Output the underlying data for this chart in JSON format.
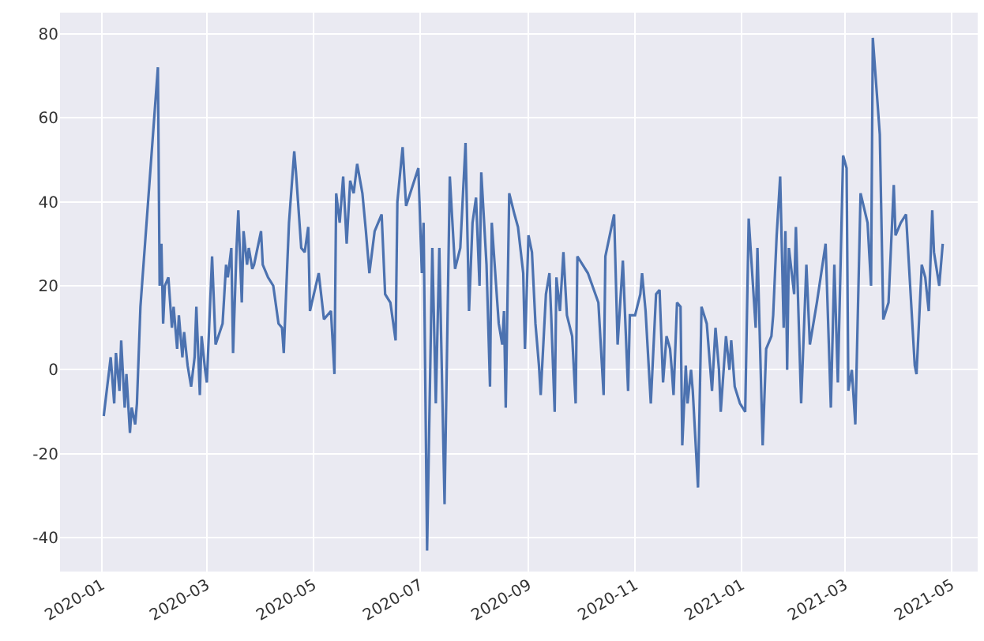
{
  "chart_data": {
    "type": "line",
    "xlim": [
      "2019-12-08",
      "2021-05-16"
    ],
    "ylim": [
      -48,
      85
    ],
    "xticks": [
      "2020-01",
      "2020-03",
      "2020-05",
      "2020-07",
      "2020-09",
      "2020-11",
      "2021-01",
      "2021-03",
      "2021-05"
    ],
    "yticks": [
      -40,
      -20,
      0,
      20,
      40,
      60,
      80
    ],
    "grid": true,
    "marker": "none",
    "line_style": "solid",
    "x": [
      "2020-01-02",
      "2020-01-06",
      "2020-01-08",
      "2020-01-09",
      "2020-01-11",
      "2020-01-12",
      "2020-01-14",
      "2020-01-15",
      "2020-01-17",
      "2020-01-18",
      "2020-01-20",
      "2020-01-21",
      "2020-01-23",
      "2020-02-02",
      "2020-02-03",
      "2020-02-04",
      "2020-02-05",
      "2020-02-06",
      "2020-02-08",
      "2020-02-10",
      "2020-02-11",
      "2020-02-13",
      "2020-02-14",
      "2020-02-16",
      "2020-02-17",
      "2020-02-19",
      "2020-02-21",
      "2020-02-23",
      "2020-02-24",
      "2020-02-26",
      "2020-02-27",
      "2020-02-29",
      "2020-03-01",
      "2020-03-04",
      "2020-03-06",
      "2020-03-10",
      "2020-03-12",
      "2020-03-13",
      "2020-03-15",
      "2020-03-16",
      "2020-03-18",
      "2020-03-19",
      "2020-03-21",
      "2020-03-22",
      "2020-03-24",
      "2020-03-25",
      "2020-03-27",
      "2020-03-28",
      "2020-04-01",
      "2020-04-02",
      "2020-04-05",
      "2020-04-08",
      "2020-04-11",
      "2020-04-13",
      "2020-04-14",
      "2020-04-16",
      "2020-04-17",
      "2020-04-20",
      "2020-04-21",
      "2020-04-24",
      "2020-04-26",
      "2020-04-28",
      "2020-04-29",
      "2020-05-04",
      "2020-05-07",
      "2020-05-11",
      "2020-05-13",
      "2020-05-14",
      "2020-05-16",
      "2020-05-18",
      "2020-05-20",
      "2020-05-22",
      "2020-05-24",
      "2020-05-26",
      "2020-05-29",
      "2020-05-31",
      "2020-06-02",
      "2020-06-05",
      "2020-06-09",
      "2020-06-11",
      "2020-06-14",
      "2020-06-17",
      "2020-06-18",
      "2020-06-21",
      "2020-06-23",
      "2020-06-30",
      "2020-07-02",
      "2020-07-03",
      "2020-07-05",
      "2020-07-08",
      "2020-07-10",
      "2020-07-12",
      "2020-07-15",
      "2020-07-18",
      "2020-07-21",
      "2020-07-24",
      "2020-07-27",
      "2020-07-29",
      "2020-07-31",
      "2020-08-02",
      "2020-08-04",
      "2020-08-05",
      "2020-08-08",
      "2020-08-10",
      "2020-08-11",
      "2020-08-15",
      "2020-08-17",
      "2020-08-18",
      "2020-08-19",
      "2020-08-21",
      "2020-08-24",
      "2020-08-26",
      "2020-08-29",
      "2020-08-30",
      "2020-09-01",
      "2020-09-03",
      "2020-09-05",
      "2020-09-07",
      "2020-09-08",
      "2020-09-11",
      "2020-09-13",
      "2020-09-14",
      "2020-09-16",
      "2020-09-17",
      "2020-09-19",
      "2020-09-21",
      "2020-09-23",
      "2020-09-26",
      "2020-09-28",
      "2020-09-29",
      "2020-10-05",
      "2020-10-11",
      "2020-10-14",
      "2020-10-15",
      "2020-10-18",
      "2020-10-20",
      "2020-10-22",
      "2020-10-25",
      "2020-10-28",
      "2020-10-29",
      "2020-11-01",
      "2020-11-04",
      "2020-11-05",
      "2020-11-07",
      "2020-11-10",
      "2020-11-13",
      "2020-11-15",
      "2020-11-17",
      "2020-11-19",
      "2020-11-21",
      "2020-11-22",
      "2020-11-23",
      "2020-11-25",
      "2020-11-27",
      "2020-11-28",
      "2020-11-30",
      "2020-12-01",
      "2020-12-03",
      "2020-12-04",
      "2020-12-07",
      "2020-12-09",
      "2020-12-12",
      "2020-12-15",
      "2020-12-17",
      "2020-12-19",
      "2020-12-20",
      "2020-12-23",
      "2020-12-25",
      "2020-12-26",
      "2020-12-28",
      "2020-12-31",
      "2021-01-03",
      "2021-01-05",
      "2021-01-09",
      "2021-01-10",
      "2021-01-13",
      "2021-01-15",
      "2021-01-18",
      "2021-01-19",
      "2021-01-21",
      "2021-01-23",
      "2021-01-25",
      "2021-01-26",
      "2021-01-27",
      "2021-01-28",
      "2021-01-31",
      "2021-02-01",
      "2021-02-03",
      "2021-02-04",
      "2021-02-07",
      "2021-02-09",
      "2021-02-13",
      "2021-02-18",
      "2021-02-21",
      "2021-02-23",
      "2021-02-25",
      "2021-02-28",
      "2021-03-02",
      "2021-03-03",
      "2021-03-05",
      "2021-03-07",
      "2021-03-10",
      "2021-03-14",
      "2021-03-16",
      "2021-03-17",
      "2021-03-21",
      "2021-03-23",
      "2021-03-26",
      "2021-03-29",
      "2021-03-30",
      "2021-04-02",
      "2021-04-05",
      "2021-04-10",
      "2021-04-11",
      "2021-04-14",
      "2021-04-16",
      "2021-04-18",
      "2021-04-20",
      "2021-04-21",
      "2021-04-24",
      "2021-04-26"
    ],
    "series": [
      {
        "color": "#4c72b0",
        "values": [
          -11,
          3,
          -8,
          4,
          -5,
          7,
          -9,
          -1,
          -15,
          -9,
          -13,
          -8,
          15,
          72,
          20,
          30,
          11,
          20,
          22,
          10,
          15,
          5,
          13,
          3,
          9,
          1,
          -4,
          3,
          15,
          -6,
          8,
          0,
          -3,
          27,
          6,
          11,
          25,
          22,
          29,
          4,
          29,
          38,
          16,
          33,
          25,
          29,
          24,
          25,
          33,
          25,
          22,
          20,
          11,
          10,
          4,
          25,
          35,
          52,
          47,
          29,
          28,
          34,
          14,
          23,
          12,
          14,
          -1,
          42,
          35,
          46,
          30,
          45,
          42,
          49,
          42,
          33,
          23,
          33,
          37,
          18,
          16,
          7,
          40,
          53,
          39,
          48,
          23,
          35,
          -43,
          29,
          -8,
          29,
          -32,
          46,
          24,
          29,
          54,
          14,
          35,
          41,
          20,
          47,
          25,
          -4,
          35,
          11,
          6,
          14,
          -9,
          42,
          37,
          34,
          23,
          5,
          32,
          28,
          11,
          1,
          -6,
          18,
          23,
          13,
          -10,
          22,
          14,
          28,
          13,
          8,
          -8,
          27,
          23,
          16,
          -6,
          27,
          33,
          37,
          6,
          26,
          -5,
          13,
          13,
          18,
          23,
          14,
          -8,
          18,
          19,
          -3,
          8,
          5,
          0,
          -6,
          16,
          15,
          -18,
          1,
          -8,
          0,
          -5,
          -28,
          15,
          11,
          -5,
          10,
          0,
          -10,
          8,
          0,
          7,
          -4,
          -8,
          -10,
          36,
          10,
          29,
          -18,
          5,
          8,
          13,
          32,
          46,
          10,
          33,
          0,
          29,
          18,
          34,
          6,
          -8,
          25,
          6,
          16,
          30,
          -9,
          25,
          -3,
          51,
          48,
          -5,
          0,
          -13,
          42,
          35,
          20,
          79,
          56,
          12,
          16,
          44,
          32,
          35,
          37,
          1,
          -1,
          25,
          22,
          14,
          38,
          28,
          20,
          30
        ]
      }
    ]
  }
}
